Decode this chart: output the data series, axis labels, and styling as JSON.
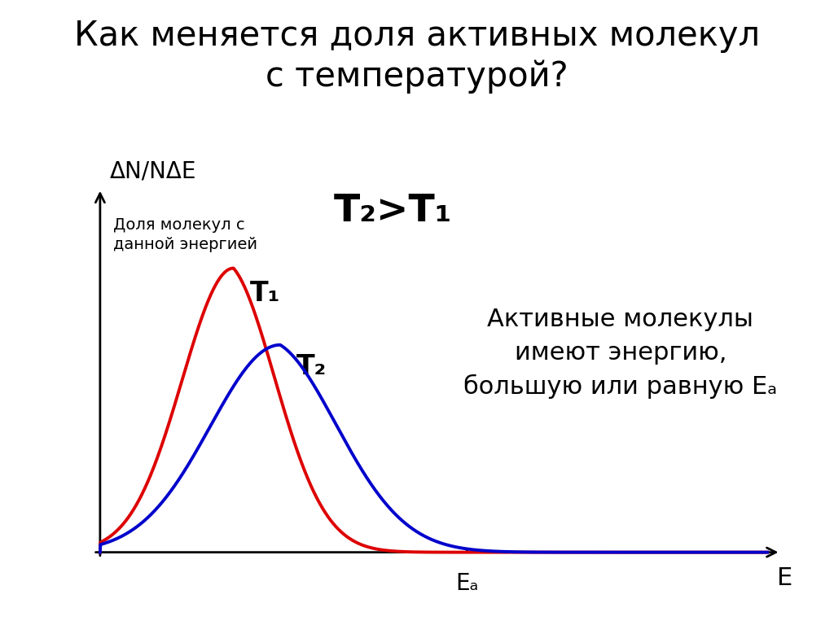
{
  "title_line1": "Как меняется доля активных молекул",
  "title_line2": "с температурой?",
  "ylabel_top": "ΔN/NΔE",
  "ylabel_sub": "Доля молекул с\nданной энергией",
  "xlabel": "E",
  "ea_label": "Eₐ",
  "t1_label": "T₁",
  "t2_label": "T₂",
  "t2_gt_t1": "T₂>T₁",
  "annotation": "Активные молекулы\nимеют энергию,\nбольшую или равную Eₐ",
  "color_T1": "#dd0000",
  "color_T2": "#0000cc",
  "background": "#ffffff",
  "title_fontsize": 30,
  "label_fontsize": 18,
  "annotation_fontsize": 22,
  "t_label_fontsize": 24,
  "t2gt_fontsize": 34
}
